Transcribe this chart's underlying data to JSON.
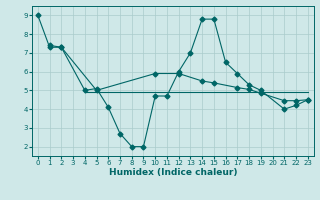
{
  "background_color": "#cfe8e8",
  "grid_color": "#aacccc",
  "line_color": "#006666",
  "xlabel": "Humidex (Indice chaleur)",
  "ylim": [
    1.5,
    9.5
  ],
  "xlim": [
    -0.5,
    23.5
  ],
  "yticks": [
    2,
    3,
    4,
    5,
    6,
    7,
    8,
    9
  ],
  "xticks": [
    0,
    1,
    2,
    3,
    4,
    5,
    6,
    7,
    8,
    9,
    10,
    11,
    12,
    13,
    14,
    15,
    16,
    17,
    18,
    19,
    20,
    21,
    22,
    23
  ],
  "series1_x": [
    0,
    1,
    2,
    4,
    5,
    6,
    7,
    8,
    9,
    10,
    11,
    12,
    13,
    14,
    15,
    16,
    17,
    18,
    19,
    21,
    22,
    23
  ],
  "series1_y": [
    9.0,
    7.3,
    7.3,
    5.0,
    5.1,
    4.1,
    2.7,
    2.0,
    2.0,
    4.7,
    4.7,
    6.0,
    7.0,
    8.8,
    8.8,
    6.5,
    5.9,
    5.3,
    5.0,
    4.0,
    4.2,
    4.5
  ],
  "series2_x": [
    1,
    2,
    5,
    10,
    12,
    14,
    15,
    17,
    18,
    19,
    21,
    22,
    23
  ],
  "series2_y": [
    7.4,
    7.3,
    5.0,
    5.9,
    5.9,
    5.5,
    5.4,
    5.15,
    5.05,
    4.85,
    4.45,
    4.45,
    4.5
  ],
  "series3_x": [
    4,
    23
  ],
  "series3_y": [
    4.9,
    4.9
  ]
}
